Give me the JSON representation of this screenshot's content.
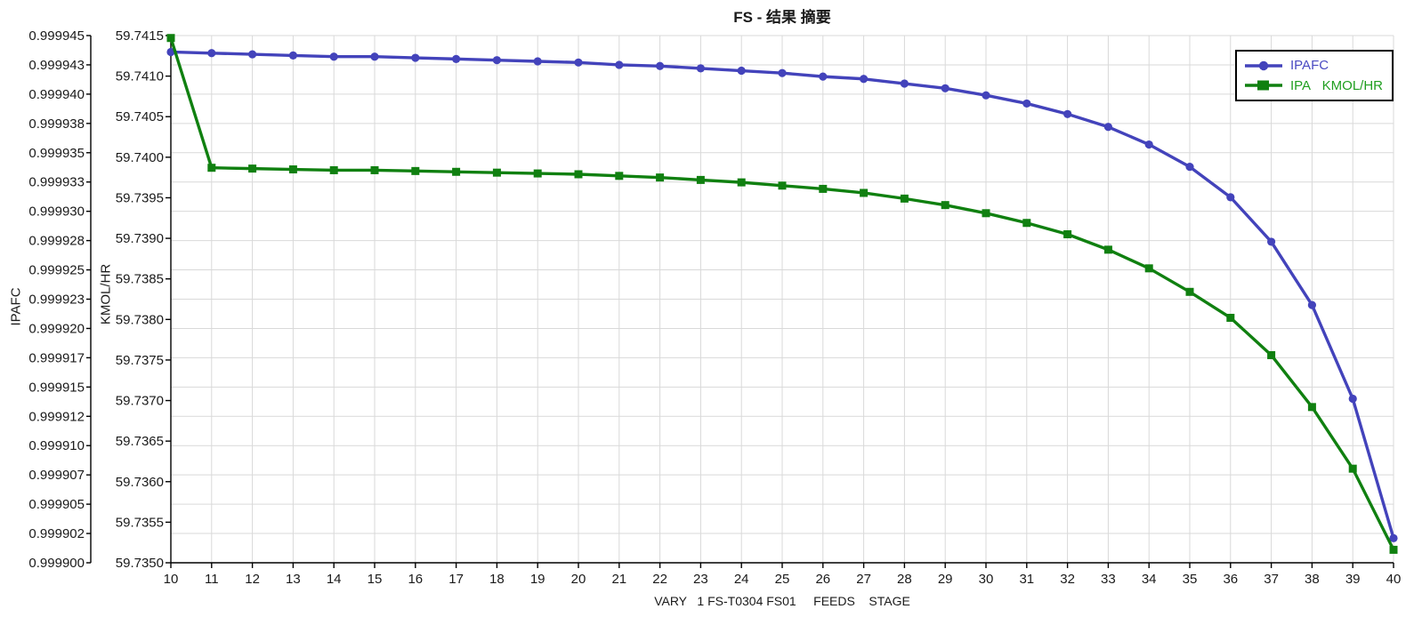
{
  "colors": {
    "background": "#ffffff",
    "gridline": "#d9d9d9",
    "axis": "#000000",
    "tick_text": "#1a1a1a"
  },
  "chart_data": {
    "type": "line",
    "title": "FS - 结果 摘要",
    "xlabel": "VARY   1 FS-T0304 FS01     FEEDS    STAGE",
    "grid": true,
    "legend_position": "top-right",
    "x": [
      10,
      11,
      12,
      13,
      14,
      15,
      16,
      17,
      18,
      19,
      20,
      21,
      22,
      23,
      24,
      25,
      26,
      27,
      28,
      29,
      30,
      31,
      32,
      33,
      34,
      35,
      36,
      37,
      38,
      39,
      40
    ],
    "axes": {
      "x": {
        "min": 10,
        "max": 40,
        "tick_labels": [
          "10",
          "11",
          "12",
          "13",
          "14",
          "15",
          "16",
          "17",
          "18",
          "19",
          "20",
          "21",
          "22",
          "23",
          "24",
          "25",
          "26",
          "27",
          "28",
          "29",
          "30",
          "31",
          "32",
          "33",
          "34",
          "35",
          "36",
          "37",
          "38",
          "39",
          "40"
        ]
      },
      "y1": {
        "label": "IPAFC",
        "min": 0.9999,
        "max": 0.999945,
        "tick_labels": [
          "0.999945",
          "0.999943",
          "0.999940",
          "0.999938",
          "0.999935",
          "0.999933",
          "0.999930",
          "0.999928",
          "0.999925",
          "0.999923",
          "0.999920",
          "0.999917",
          "0.999915",
          "0.999912",
          "0.999910",
          "0.999907",
          "0.999905",
          "0.999902",
          "0.999900"
        ]
      },
      "y2": {
        "label": "KMOL/HR",
        "min": 59.735,
        "max": 59.7415,
        "tick_labels": [
          "59.7415",
          "59.7410",
          "59.7405",
          "59.7400",
          "59.7395",
          "59.7390",
          "59.7385",
          "59.7380",
          "59.7375",
          "59.7370",
          "59.7365",
          "59.7360",
          "59.7355",
          "59.7350"
        ]
      }
    },
    "series": [
      {
        "name": "IPAFC",
        "axis": "y1",
        "marker": "circle",
        "color": "#4343bb",
        "text_color": "#4a4ac2",
        "values": [
          0.9999436,
          0.9999435,
          0.9999434,
          0.9999433,
          0.9999432,
          0.9999432,
          0.9999431,
          0.999943,
          0.9999429,
          0.9999428,
          0.9999427,
          0.9999425,
          0.9999424,
          0.9999422,
          0.999942,
          0.9999418,
          0.9999415,
          0.9999413,
          0.9999409,
          0.9999405,
          0.9999399,
          0.9999392,
          0.9999383,
          0.9999372,
          0.9999357,
          0.9999338,
          0.9999312,
          0.9999274,
          0.999922,
          0.999914,
          0.9999021
        ]
      },
      {
        "name": "IPA",
        "units": "KMOL/HR",
        "axis": "y2",
        "marker": "square",
        "color": "#108010",
        "text_color": "#1f9e1f",
        "values": [
          59.74147,
          59.73987,
          59.73986,
          59.73985,
          59.73984,
          59.73984,
          59.73983,
          59.73982,
          59.73981,
          59.7398,
          59.73979,
          59.73977,
          59.73975,
          59.73972,
          59.73969,
          59.73965,
          59.73961,
          59.73956,
          59.73949,
          59.73941,
          59.73931,
          59.73919,
          59.73905,
          59.73886,
          59.73863,
          59.73834,
          59.73802,
          59.73756,
          59.73692,
          59.73616,
          59.73516
        ]
      }
    ]
  }
}
